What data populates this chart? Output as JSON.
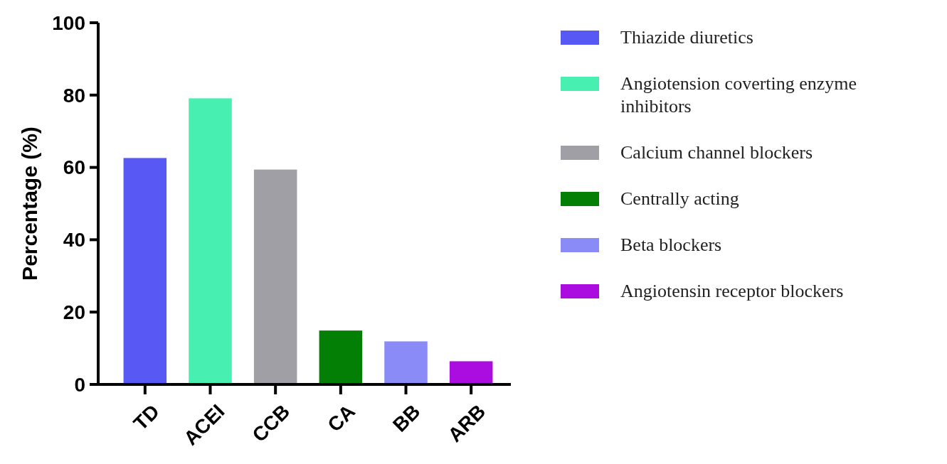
{
  "chart_data": {
    "type": "bar",
    "ylabel": "Percentage (%)",
    "categories": [
      "TD",
      "ACEI",
      "CCB",
      "CA",
      "BB",
      "ARB"
    ],
    "series": [
      {
        "name": "Thiazide diuretics",
        "color": "#5858f5",
        "values": [
          62.6,
          null,
          null,
          null,
          null,
          null
        ]
      },
      {
        "name": "Angiotension coverting enzyme inhibitors",
        "color": "#47efb0",
        "values": [
          null,
          79.1,
          null,
          null,
          null,
          null
        ]
      },
      {
        "name": "Calcium channel blockers",
        "color": "#a09fa5",
        "values": [
          null,
          null,
          59.4,
          null,
          null,
          null
        ]
      },
      {
        "name": "Centrally acting",
        "color": "#037f05",
        "values": [
          null,
          null,
          null,
          14.9,
          null,
          null
        ]
      },
      {
        "name": "Beta blockers",
        "color": "#8b8bf7",
        "values": [
          null,
          null,
          null,
          null,
          11.9,
          null
        ]
      },
      {
        "name": "Angiotensin receptor blockers",
        "color": "#ab0ce0",
        "values": [
          null,
          null,
          null,
          null,
          null,
          6.4
        ]
      }
    ],
    "ylim": [
      0,
      100
    ],
    "yticks": [
      0,
      20,
      40,
      60,
      80,
      100
    ],
    "legend": "right"
  }
}
